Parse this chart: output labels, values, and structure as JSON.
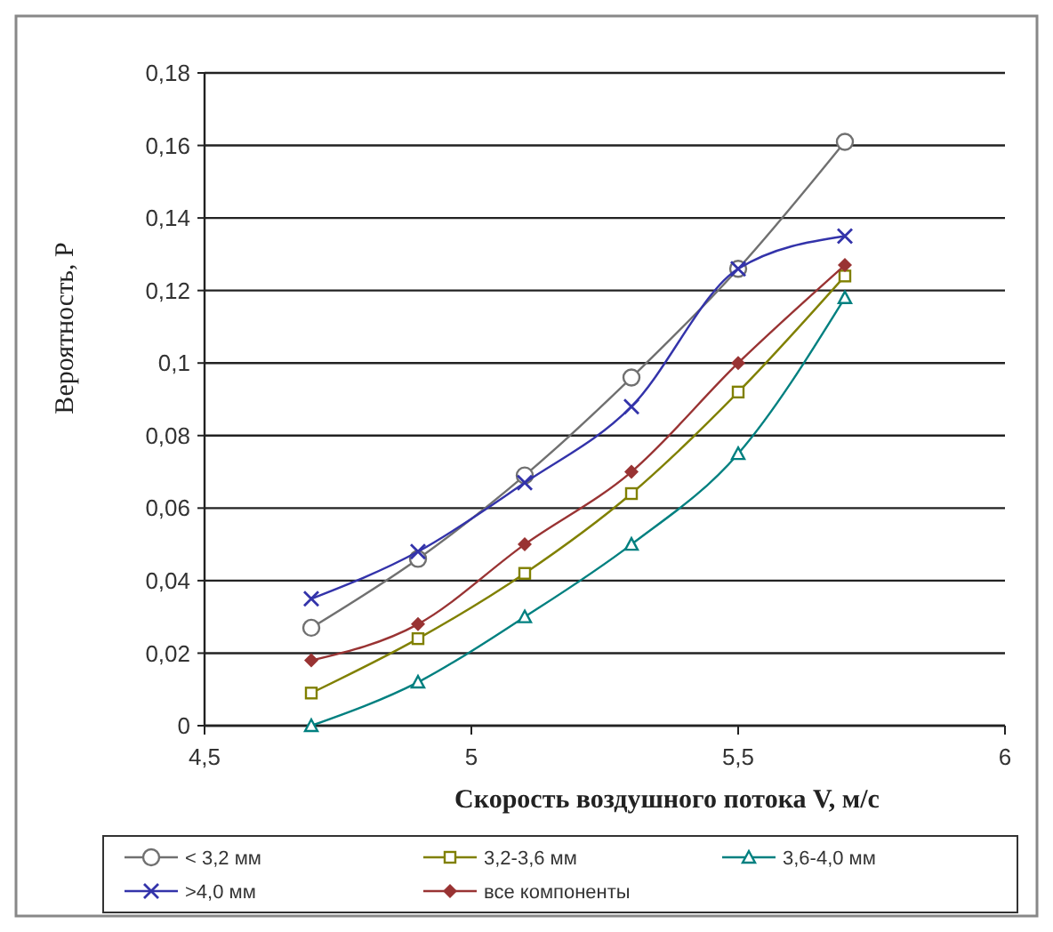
{
  "chart_data": {
    "type": "line",
    "xlabel": "Скорость воздушного потока V, м/с",
    "ylabel": "Вероятность, Р",
    "x": [
      4.7,
      4.9,
      5.1,
      5.3,
      5.5,
      5.7
    ],
    "xlim": [
      4.5,
      6
    ],
    "xticks": [
      {
        "value": 4.5,
        "label": "4,5"
      },
      5,
      {
        "value": 5.5,
        "label": "5,5"
      },
      6
    ],
    "ylim": [
      0,
      0.18
    ],
    "yticks": [
      0,
      {
        "value": 0.02,
        "label": "0,02"
      },
      {
        "value": 0.04,
        "label": "0,04"
      },
      {
        "value": 0.06,
        "label": "0,06"
      },
      {
        "value": 0.08,
        "label": "0,08"
      },
      {
        "value": 0.1,
        "label": "0,1"
      },
      {
        "value": 0.12,
        "label": "0,12"
      },
      {
        "value": 0.14,
        "label": "0,14"
      },
      {
        "value": 0.16,
        "label": "0,16"
      },
      {
        "value": 0.18,
        "label": "0,18"
      }
    ],
    "grid": "y",
    "legend": "bottom",
    "series": [
      {
        "name": "< 3,2 мм",
        "color": "#707070",
        "marker": "circle",
        "values": [
          0.027,
          0.046,
          0.069,
          0.096,
          0.126,
          0.161
        ]
      },
      {
        "name": "3,2-3,6 мм",
        "color": "#808000",
        "marker": "square",
        "values": [
          0.009,
          0.024,
          0.042,
          0.064,
          0.092,
          0.124
        ]
      },
      {
        "name": "3,6-4,0 мм",
        "color": "#008080",
        "marker": "triangle",
        "values": [
          0,
          0.012,
          0.03,
          0.05,
          0.075,
          0.118
        ]
      },
      {
        "name": ">4,0 мм",
        "color": "#3333aa",
        "marker": "cross",
        "values": [
          0.035,
          0.048,
          0.067,
          0.088,
          0.126,
          0.135
        ]
      },
      {
        "name": "все компоненты",
        "color": "#993333",
        "marker": "diamond",
        "values": [
          0.018,
          0.028,
          0.05,
          0.07,
          0.1,
          0.127
        ]
      }
    ]
  }
}
